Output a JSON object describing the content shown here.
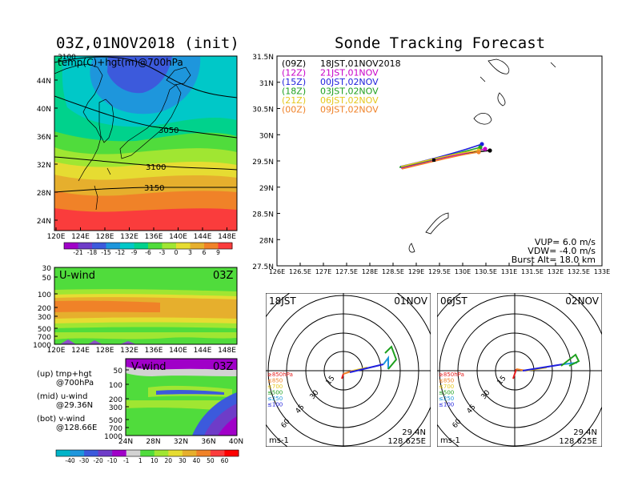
{
  "titles": {
    "left": "03Z,01NOV2018 (init)",
    "right": "Sonde Tracking Forecast"
  },
  "map_panel": {
    "field_label": "temp(C)+hgt(m)@700hPa",
    "corner_label": "3100",
    "contour_labels": [
      "3050",
      "3100",
      "3150"
    ],
    "lat_ticks": [
      "44N",
      "40N",
      "36N",
      "32N",
      "28N",
      "24N"
    ],
    "lon_ticks": [
      "120E",
      "124E",
      "128E",
      "132E",
      "136E",
      "140E",
      "144E",
      "148E"
    ],
    "colorbar_ticks": [
      "-21",
      "-18",
      "-15",
      "-12",
      "-9",
      "-6",
      "-3",
      "0",
      "3",
      "6",
      "9"
    ],
    "colors": [
      "#a000c8",
      "#6e3cc8",
      "#3c5adc",
      "#1e96dc",
      "#00c8c8",
      "#00d28c",
      "#50dc3c",
      "#a0e632",
      "#e6dc32",
      "#e6af2d",
      "#f08228",
      "#fa3c3c"
    ]
  },
  "uwind_panel": {
    "label": "U-wind",
    "time": "03Z",
    "p_ticks": [
      "30",
      "50",
      "100",
      "200",
      "300",
      "500",
      "700",
      "1000"
    ],
    "lon_ticks": [
      "120E",
      "124E",
      "128E",
      "132E",
      "136E",
      "140E",
      "144E",
      "148E"
    ]
  },
  "vwind_panel": {
    "label": "V-wind",
    "time": "03Z",
    "p_ticks": [
      "50",
      "100",
      "200",
      "300",
      "500",
      "700",
      "1000"
    ],
    "lat_ticks": [
      "24N",
      "28N",
      "32N",
      "36N",
      "40N"
    ]
  },
  "notes": [
    {
      "head": "(up) tmp+hgt",
      "sub": "@700hPa"
    },
    {
      "head": "(mid) u-wind",
      "sub": "@29.36N"
    },
    {
      "head": "(bot) v-wind",
      "sub": "@128.66E"
    }
  ],
  "wind_colorbar_ticks": [
    "-40",
    "-30",
    "-20",
    "-10",
    "-1",
    "1",
    "10",
    "20",
    "30",
    "40",
    "50",
    "60"
  ],
  "wind_colors": [
    "#00b4c8",
    "#1e96dc",
    "#3c5adc",
    "#6e3cc8",
    "#a000c8",
    "#d2d2d2",
    "#50dc3c",
    "#a0e632",
    "#e6dc32",
    "#e6af2d",
    "#f08228",
    "#fa3c3c",
    "#ff0000"
  ],
  "track_panel": {
    "legend": [
      {
        "code": "(09Z)",
        "time": "18JST,01NOV2018",
        "color": "#000000"
      },
      {
        "code": "(12Z)",
        "time": "21JST,01NOV",
        "color": "#c800c8"
      },
      {
        "code": "(15Z)",
        "time": "00JST,02NOV",
        "color": "#1e1edc"
      },
      {
        "code": "(18Z)",
        "time": "03JST,02NOV",
        "color": "#1ea01e"
      },
      {
        "code": "(21Z)",
        "time": "06JST,02NOV",
        "color": "#e6c81e"
      },
      {
        "code": "(00Z)",
        "time": "09JST,02NOV",
        "color": "#f08228"
      }
    ],
    "lat_ticks": [
      "31.5N",
      "31N",
      "30.5N",
      "30N",
      "29.5N",
      "29N",
      "28.5N",
      "28N",
      "27.5N"
    ],
    "lon_ticks": [
      "126E",
      "126.5E",
      "127E",
      "127.5E",
      "128E",
      "128.5E",
      "129E",
      "129.5E",
      "130E",
      "130.5E",
      "131E",
      "131.5E",
      "132E",
      "132.5E",
      "133E"
    ],
    "vup": "VUP= 6.0 m/s",
    "vdw": "VDW= -4.0 m/s",
    "burst": "Burst Alt= 18.0 km"
  },
  "polar_left": {
    "time": "18JST",
    "date": "01NOV",
    "lat": "29.4N",
    "lon": "128.625E",
    "unit": "ms-1",
    "rings": [
      "15",
      "30",
      "45",
      "60"
    ],
    "levels": [
      "≥850hPa",
      "≤850",
      "≤700",
      "≤500",
      "≤250",
      "≤100"
    ]
  },
  "polar_right": {
    "time": "06JST",
    "date": "02NOV",
    "lat": "29.4N",
    "lon": "128.625E",
    "unit": "ms-1",
    "rings": [
      "15",
      "30",
      "45",
      "60"
    ],
    "levels": [
      "≥850hPa",
      "≤850",
      "≤700",
      "≤500",
      "≤250",
      "≤100"
    ]
  },
  "level_colors": [
    "#e61e1e",
    "#f08228",
    "#e6c81e",
    "#1ea01e",
    "#1e96dc",
    "#1e1edc"
  ]
}
